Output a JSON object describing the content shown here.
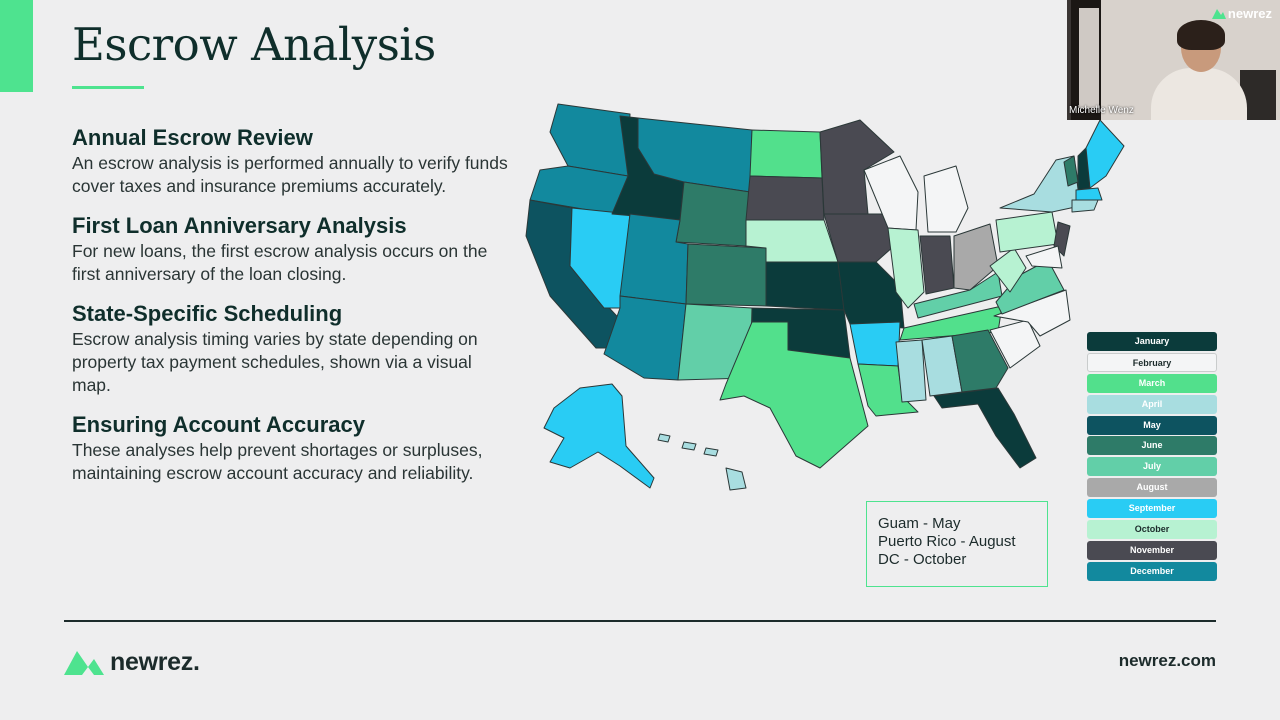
{
  "slide": {
    "title": "Escrow Analysis",
    "sections": [
      {
        "heading": "Annual Escrow Review",
        "body": "An escrow analysis is performed annually to verify funds cover taxes and insurance premiums accurately."
      },
      {
        "heading": "First Loan Anniversary Analysis",
        "body": "For new loans, the first escrow analysis occurs on the first anniversary of the loan closing."
      },
      {
        "heading": "State-Specific Scheduling",
        "body": "Escrow analysis timing varies by state depending on property tax payment schedules, shown via a visual map."
      },
      {
        "heading": "Ensuring Account Accuracy",
        "body": "These analyses help prevent shortages or surpluses, maintaining escrow account accuracy and reliability."
      }
    ],
    "territories": [
      "Guam - May",
      "Puerto Rico - August",
      "DC - October"
    ],
    "legend": [
      {
        "label": "January",
        "color": "#0b3b3b",
        "text_color": "#ffffff"
      },
      {
        "label": "February",
        "color": "#f4f5f6",
        "text_color": "#1c2b2b"
      },
      {
        "label": "March",
        "color": "#52e08c",
        "text_color": "#ffffff"
      },
      {
        "label": "April",
        "color": "#a8dde0",
        "text_color": "#ffffff"
      },
      {
        "label": "May",
        "color": "#0d5360",
        "text_color": "#ffffff"
      },
      {
        "label": "June",
        "color": "#2e7b68",
        "text_color": "#ffffff"
      },
      {
        "label": "July",
        "color": "#62cfa8",
        "text_color": "#ffffff"
      },
      {
        "label": "August",
        "color": "#a9a9a9",
        "text_color": "#ffffff"
      },
      {
        "label": "September",
        "color": "#29ccf4",
        "text_color": "#ffffff"
      },
      {
        "label": "October",
        "color": "#b7f2d2",
        "text_color": "#1c2b2b"
      },
      {
        "label": "November",
        "color": "#4a4a52",
        "text_color": "#ffffff"
      },
      {
        "label": "December",
        "color": "#12899e",
        "text_color": "#ffffff"
      }
    ]
  },
  "video": {
    "participant_name": "Michelle Wenz",
    "logo_text": "newrez"
  },
  "footer": {
    "brand": "newrez.",
    "url": "newrez.com"
  },
  "colors": {
    "accent": "#4ee38f",
    "dark_text": "#0f2e2b"
  }
}
